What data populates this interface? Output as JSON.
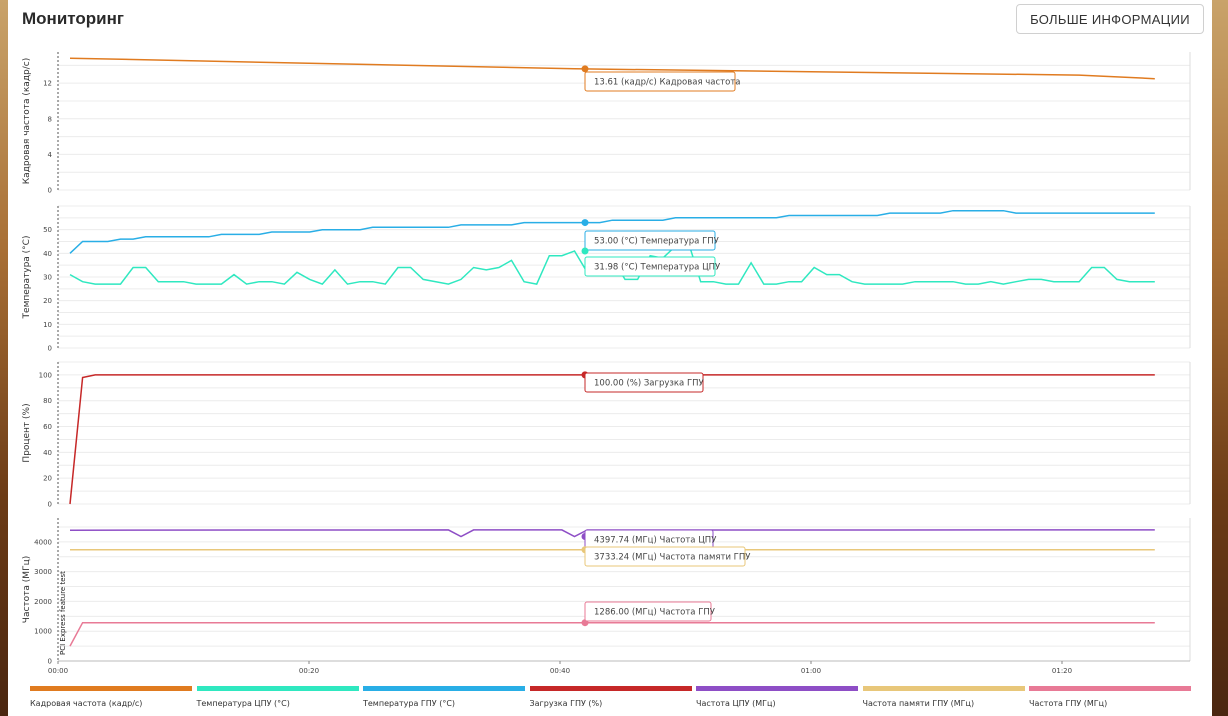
{
  "header": {
    "title": "Мониторинг",
    "more_button": "БОЛЬШЕ ИНФОРМАЦИИ"
  },
  "colors": {
    "fps": "#e07b20",
    "cpu_temp": "#2fe8c0",
    "gpu_temp": "#29aee6",
    "gpu_load": "#c62828",
    "cpu_freq": "#8e4ec6",
    "gpu_mem_freq": "#e8c77a",
    "gpu_freq": "#e87a96"
  },
  "sidebar_vertical_text": "PCI Express feature test",
  "chart_data": [
    {
      "type": "line",
      "ylabel": "Кадровая частота (кадр/с)",
      "yticks": [
        0,
        4,
        8,
        12
      ],
      "ylim": [
        0,
        15.5
      ],
      "series": [
        {
          "key": "fps",
          "name": "Кадровая частота (кадр/с)",
          "x": [
            0,
            40,
            80,
            86
          ],
          "y": [
            14.8,
            13.61,
            12.9,
            12.5
          ]
        }
      ],
      "tooltips": [
        {
          "series": "fps",
          "text": "13.61 (кадр/с) Кадровая частота"
        }
      ]
    },
    {
      "type": "line",
      "ylabel": "Температура (°C)",
      "yticks": [
        0,
        10,
        20,
        30,
        40,
        50
      ],
      "ylim": [
        0,
        60
      ],
      "series": [
        {
          "key": "gpu_temp",
          "name": "Температура ГПУ (°C)",
          "x": [
            0,
            1,
            2,
            3,
            4,
            5,
            6,
            7,
            8,
            9,
            10,
            11,
            12,
            13,
            14,
            15,
            16,
            17,
            18,
            19,
            20,
            21,
            22,
            23,
            24,
            25,
            26,
            27,
            28,
            29,
            30,
            31,
            32,
            33,
            34,
            35,
            36,
            37,
            38,
            39,
            40,
            41,
            42,
            43,
            44,
            45,
            46,
            47,
            48,
            49,
            50,
            51,
            52,
            53,
            54,
            55,
            56,
            57,
            58,
            59,
            60,
            61,
            62,
            63,
            64,
            65,
            66,
            67,
            68,
            69,
            70,
            71,
            72,
            73,
            74,
            75,
            76,
            77,
            78,
            79,
            80,
            81,
            82,
            83,
            84,
            85,
            86
          ],
          "y": [
            40,
            45,
            45,
            45,
            46,
            46,
            47,
            47,
            47,
            47,
            47,
            47,
            48,
            48,
            48,
            48,
            49,
            49,
            49,
            49,
            50,
            50,
            50,
            50,
            51,
            51,
            51,
            51,
            51,
            51,
            51,
            52,
            52,
            52,
            52,
            52,
            53,
            53,
            53,
            53,
            53,
            53,
            53,
            54,
            54,
            54,
            54,
            54,
            55,
            55,
            55,
            55,
            55,
            55,
            55,
            55,
            55,
            56,
            56,
            56,
            56,
            56,
            56,
            56,
            56,
            57,
            57,
            57,
            57,
            57,
            58,
            58,
            58,
            58,
            58,
            57,
            57,
            57,
            57,
            57,
            57,
            57,
            57,
            57,
            57,
            57,
            57
          ]
        },
        {
          "key": "cpu_temp",
          "name": "Температура ЦПУ (°C)",
          "x": [
            0,
            1,
            2,
            3,
            4,
            5,
            6,
            7,
            8,
            9,
            10,
            11,
            12,
            13,
            14,
            15,
            16,
            17,
            18,
            19,
            20,
            21,
            22,
            23,
            24,
            25,
            26,
            27,
            28,
            29,
            30,
            31,
            32,
            33,
            34,
            35,
            36,
            37,
            38,
            39,
            40,
            41,
            42,
            43,
            44,
            45,
            46,
            47,
            48,
            49,
            50,
            51,
            52,
            53,
            54,
            55,
            56,
            57,
            58,
            59,
            60,
            61,
            62,
            63,
            64,
            65,
            66,
            67,
            68,
            69,
            70,
            71,
            72,
            73,
            74,
            75,
            76,
            77,
            78,
            79,
            80,
            81,
            82,
            83,
            84,
            85,
            86
          ],
          "y": [
            31,
            28,
            27,
            27,
            27,
            34,
            34,
            28,
            28,
            28,
            27,
            27,
            27,
            31,
            27,
            28,
            28,
            27,
            32,
            29,
            27,
            33,
            27,
            28,
            28,
            27,
            34,
            34,
            29,
            28,
            27,
            29,
            34,
            33,
            34,
            37,
            28,
            27,
            39,
            39,
            41,
            32,
            31,
            38,
            29,
            29,
            39,
            38,
            43,
            45,
            28,
            28,
            27,
            27,
            36,
            27,
            27,
            28,
            28,
            34,
            31,
            31,
            28,
            27,
            27,
            27,
            27,
            28,
            28,
            28,
            28,
            27,
            27,
            28,
            27,
            28,
            29,
            29,
            28,
            28,
            28,
            34,
            34,
            29,
            28,
            28,
            28
          ]
        }
      ],
      "tooltips": [
        {
          "series": "gpu_temp",
          "text": "53.00 (°C) Температура ГПУ"
        },
        {
          "series": "cpu_temp",
          "text": "31.98 (°C) Температура ЦПУ"
        }
      ]
    },
    {
      "type": "line",
      "ylabel": "Процент (%)",
      "yticks": [
        0,
        20,
        40,
        60,
        80,
        100
      ],
      "ylim": [
        0,
        110
      ],
      "series": [
        {
          "key": "gpu_load",
          "name": "Загрузка ГПУ (%)",
          "x": [
            0,
            1,
            2,
            40,
            86
          ],
          "y": [
            0,
            98,
            100,
            100,
            100
          ]
        }
      ],
      "tooltips": [
        {
          "series": "gpu_load",
          "text": "100.00 (%) Загрузка ГПУ"
        }
      ]
    },
    {
      "type": "line",
      "ylabel": "Частота (МГц)",
      "yticks": [
        0,
        1000,
        2000,
        3000,
        4000
      ],
      "ylim": [
        0,
        4800
      ],
      "xticks": [
        "00:00",
        "00:20",
        "00:40",
        "01:00",
        "01:20"
      ],
      "series": [
        {
          "key": "cpu_freq",
          "name": "Частота ЦПУ (МГц)",
          "x": [
            0,
            30,
            31,
            32,
            39,
            40,
            41,
            86
          ],
          "y": [
            4390,
            4400,
            4180,
            4400,
            4400,
            4180,
            4397.74,
            4400
          ]
        },
        {
          "key": "gpu_mem_freq",
          "name": "Частота памяти ГПУ (МГц)",
          "x": [
            0,
            86
          ],
          "y": [
            3733.24,
            3733.24
          ]
        },
        {
          "key": "gpu_freq",
          "name": "Частота ГПУ (МГц)",
          "x": [
            0,
            1,
            40,
            86
          ],
          "y": [
            500,
            1286,
            1286,
            1286
          ]
        }
      ],
      "tooltips": [
        {
          "series": "cpu_freq",
          "text": "4397.74 (МГц) Частота ЦПУ"
        },
        {
          "series": "gpu_mem_freq",
          "text": "3733.24 (МГц) Частота памяти ГПУ"
        },
        {
          "series": "gpu_freq",
          "text": "1286.00 (МГц) Частота ГПУ"
        }
      ]
    }
  ],
  "legend": [
    {
      "key": "fps",
      "label": "Кадровая частота (кадр/с)"
    },
    {
      "key": "cpu_temp",
      "label": "Температура ЦПУ (°C)"
    },
    {
      "key": "gpu_temp",
      "label": "Температура ГПУ (°C)"
    },
    {
      "key": "gpu_load",
      "label": "Загрузка ГПУ (%)"
    },
    {
      "key": "cpu_freq",
      "label": "Частота ЦПУ (МГц)"
    },
    {
      "key": "gpu_mem_freq",
      "label": "Частота памяти ГПУ (МГц)"
    },
    {
      "key": "gpu_freq",
      "label": "Частота ГПУ (МГц)"
    }
  ]
}
